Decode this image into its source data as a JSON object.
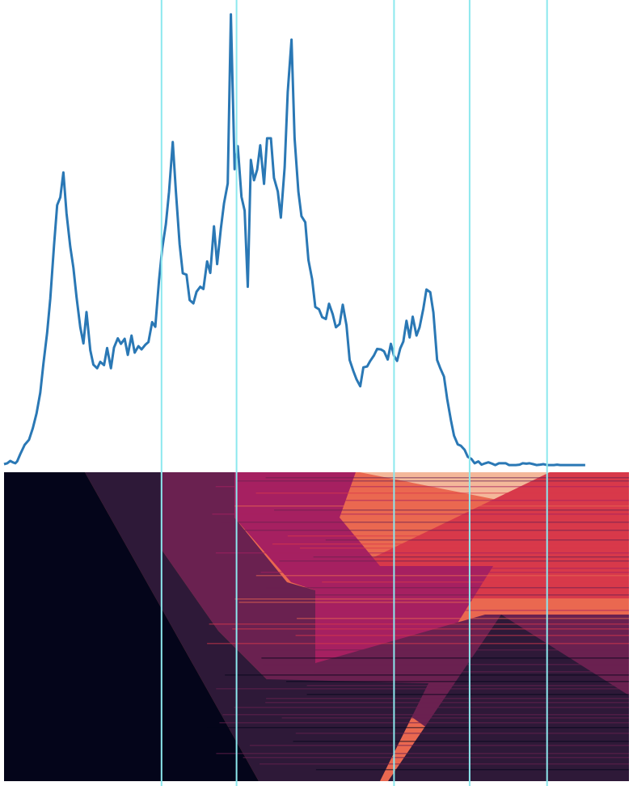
{
  "chart_data": [
    {
      "type": "line",
      "title": "",
      "xlabel": "",
      "ylabel": "",
      "xlim": [
        0,
        100
      ],
      "ylim": [
        0,
        100
      ],
      "grid": false,
      "legend": "none",
      "series": [
        {
          "color": "#2a78b5",
          "x": [
            0,
            0.5,
            1,
            1.4,
            1.8,
            2.1,
            2.6,
            3.3,
            4,
            4.6,
            5.2,
            5.8,
            6.3,
            6.9,
            7.4,
            8,
            8.5,
            9,
            9.5,
            10,
            10.6,
            11.1,
            11.6,
            12.2,
            12.7,
            13.2,
            13.8,
            14.3,
            14.9,
            15.4,
            16,
            16.5,
            17.1,
            17.6,
            18.2,
            18.7,
            19.3,
            19.8,
            20.4,
            20.9,
            21.5,
            22,
            22.6,
            23.1,
            23.7,
            24.2,
            24.8,
            25.3,
            25.9,
            26.4,
            27,
            27.5,
            28.1,
            28.6,
            29.2,
            29.7,
            30.3,
            30.8,
            31.4,
            31.9,
            32.5,
            33,
            33.6,
            34.1,
            34.7,
            35.2,
            35.8,
            36.3,
            36.9,
            37.4,
            38,
            38.5,
            39,
            39.5,
            40,
            40.5,
            41,
            41.6,
            42.1,
            42.7,
            43.2,
            43.8,
            44.3,
            44.9,
            45.4,
            46,
            46.5,
            47.1,
            47.6,
            48.2,
            48.7,
            49.3,
            49.8,
            50.4,
            50.9,
            51.5,
            52,
            52.6,
            53.1,
            53.7,
            54.2,
            54.8,
            55.3,
            55.9,
            56.4,
            57,
            57.5,
            58.1,
            58.6,
            59.2,
            59.7,
            60.3,
            60.8,
            61.4,
            61.9,
            62.4,
            62.9,
            63.4,
            63.9,
            64.4,
            64.9,
            65.4,
            66,
            66.5,
            67.1,
            67.6,
            68.2,
            68.7,
            69.3,
            69.8,
            70.4,
            70.9,
            71.5,
            72,
            72.6,
            73.1,
            73.7,
            74.2,
            74.8,
            75.3,
            75.9,
            76.4,
            77,
            77.5,
            78.1,
            78.6,
            79.2,
            79.7,
            80.3,
            80.8,
            81.4,
            81.9,
            82.5,
            83,
            83.6,
            84.1,
            84.7,
            85.2,
            85.8,
            86.3,
            86.9,
            87.4,
            88,
            88.5,
            89,
            89.5,
            90,
            90.5,
            91,
            92,
            93
          ],
          "y": [
            0.7,
            0.9,
            1.4,
            1.1,
            0.9,
            1.3,
            2.9,
            4.9,
            6,
            8.5,
            11.7,
            16.2,
            22.5,
            29.2,
            36.6,
            48.1,
            56.9,
            58.6,
            64,
            55.1,
            47.9,
            43.3,
            36.9,
            30.4,
            26.9,
            33.7,
            25.4,
            22.3,
            21.5,
            22.9,
            22.2,
            25.9,
            21.5,
            26,
            28,
            26.8,
            27.9,
            24.4,
            28.6,
            24.9,
            26.3,
            25.6,
            26.6,
            27.2,
            31.5,
            30.5,
            40.6,
            47.4,
            52.8,
            59.8,
            70.6,
            59.8,
            48.4,
            42.1,
            41.8,
            36.3,
            35.6,
            38.1,
            39.2,
            38.7,
            44.7,
            42.2,
            52.3,
            44.1,
            51.8,
            57.3,
            61.6,
            98.3,
            64.7,
            69.7,
            58.7,
            55.7,
            39.2,
            66.7,
            62.3,
            64.6,
            69.9,
            61.5,
            71.4,
            71.4,
            62.8,
            59.9,
            54.2,
            65.1,
            81.4,
            92.8,
            71.4,
            59.8,
            54.5,
            53.2,
            45,
            40.8,
            34.8,
            34.3,
            32.6,
            32.2,
            35.5,
            33.2,
            30.4,
            31.1,
            35.3,
            30.8,
            23.3,
            20.9,
            19.1,
            17.6,
            21.7,
            21.9,
            23.1,
            24.3,
            25.7,
            25.6,
            25.2,
            23.4,
            26.8,
            24.2,
            23.1,
            25.8,
            27.3,
            31.8,
            28.2,
            32.7,
            28.6,
            30.4,
            34.5,
            38.6,
            38,
            33.6,
            23.3,
            21.5,
            19.7,
            14.9,
            10.3,
            6.9,
            5,
            4.7,
            3.8,
            2.3,
            1.8,
            0.9,
            1.3,
            0.6,
            0.9,
            1.1,
            0.8,
            0.5,
            0.9,
            0.9,
            0.9,
            0.5,
            0.5,
            0.5,
            0.6,
            0.9,
            0.8,
            0.9,
            0.7,
            0.5,
            0.6,
            0.7,
            0.5,
            0.5,
            0.5,
            0.6,
            0.5,
            0.5,
            0.5,
            0.5,
            0.5,
            0.5,
            0.5
          ]
        }
      ]
    },
    {
      "type": "heatmap",
      "title": "",
      "xlabel": "",
      "ylabel": "",
      "colormap": "inferno-like",
      "colors": [
        "#04051a",
        "#2e1938",
        "#6a2150",
        "#a62061",
        "#d8394a",
        "#ea6850",
        "#f4b89a"
      ],
      "legend": "none"
    }
  ],
  "vertical_markers": {
    "color": "#8ce8ee",
    "x": [
      25.2,
      37.2,
      62.4,
      74.5,
      86.9
    ]
  }
}
